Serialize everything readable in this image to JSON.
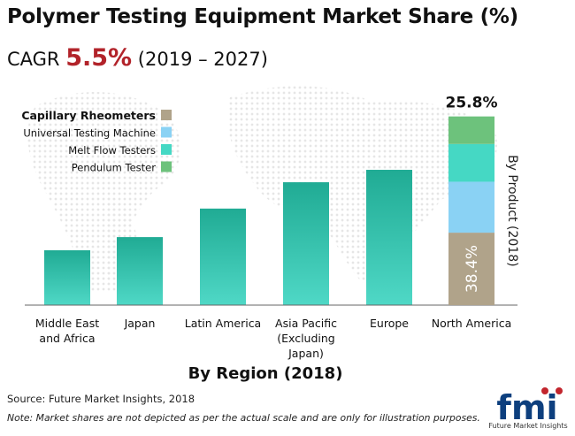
{
  "header": {
    "title": "Polymer Testing Equipment Market Share (%)",
    "cagr_label": "CAGR",
    "cagr_value": "5.5%",
    "cagr_period": "(2019 – 2027)"
  },
  "footer": {
    "source": "Source: Future Market Insights, 2018",
    "note": "Note: Market shares are not depicted as per the actual scale and are only for illustration purposes.",
    "logo_text": "fmi",
    "logo_caption": "Future Market Insights"
  },
  "colors": {
    "bar_top": "#20ab94",
    "bar_bottom": "#4fd8c6",
    "capillary": "#b0a38a",
    "universal": "#8ad2f4",
    "meltflow": "#45d8c4",
    "pendulum": "#6dc27c",
    "logo_blue": "#0d3f7e",
    "logo_red": "#c2252d"
  },
  "chart_data": {
    "type": "bar",
    "title": "Polymer Testing Equipment Market Share (%)",
    "xlabel": "By Region (2018)",
    "categories": [
      "Middle East and Africa",
      "Japan",
      "Latin America",
      "Asia Pacific (Excluding Japan)",
      "Europe",
      "North America"
    ],
    "category_lines": [
      [
        "Middle East",
        "and Africa"
      ],
      [
        "Japan"
      ],
      [
        "Latin America"
      ],
      [
        "Asia Pacific",
        "(Excluding",
        "Japan)"
      ],
      [
        "Europe"
      ],
      [
        "North America"
      ]
    ],
    "values": [
      7.5,
      9.3,
      13.2,
      16.8,
      18.5,
      25.8
    ],
    "value_labels": {
      "North America": "25.8%"
    },
    "ylim": [
      0,
      26
    ],
    "north_america_breakdown": {
      "label": "By Product (2018)",
      "segments": [
        {
          "name": "Capillary Rheometers",
          "share": 38.4,
          "label": "38.4%",
          "color": "#b0a38a"
        },
        {
          "name": "Universal Testing Machine",
          "share": 27.0,
          "color": "#8ad2f4"
        },
        {
          "name": "Melt Flow Testers",
          "share": 20.0,
          "color": "#45d8c4"
        },
        {
          "name": "Pendulum Tester",
          "share": 14.6,
          "color": "#6dc27c"
        }
      ]
    },
    "legend": {
      "placement": "top-left",
      "items": [
        {
          "name": "Capillary Rheometers",
          "color": "#b0a38a",
          "bold": true
        },
        {
          "name": "Universal Testing Machine",
          "color": "#8ad2f4"
        },
        {
          "name": "Melt Flow Testers",
          "color": "#45d8c4"
        },
        {
          "name": "Pendulum Tester",
          "color": "#6dc27c"
        }
      ]
    }
  }
}
